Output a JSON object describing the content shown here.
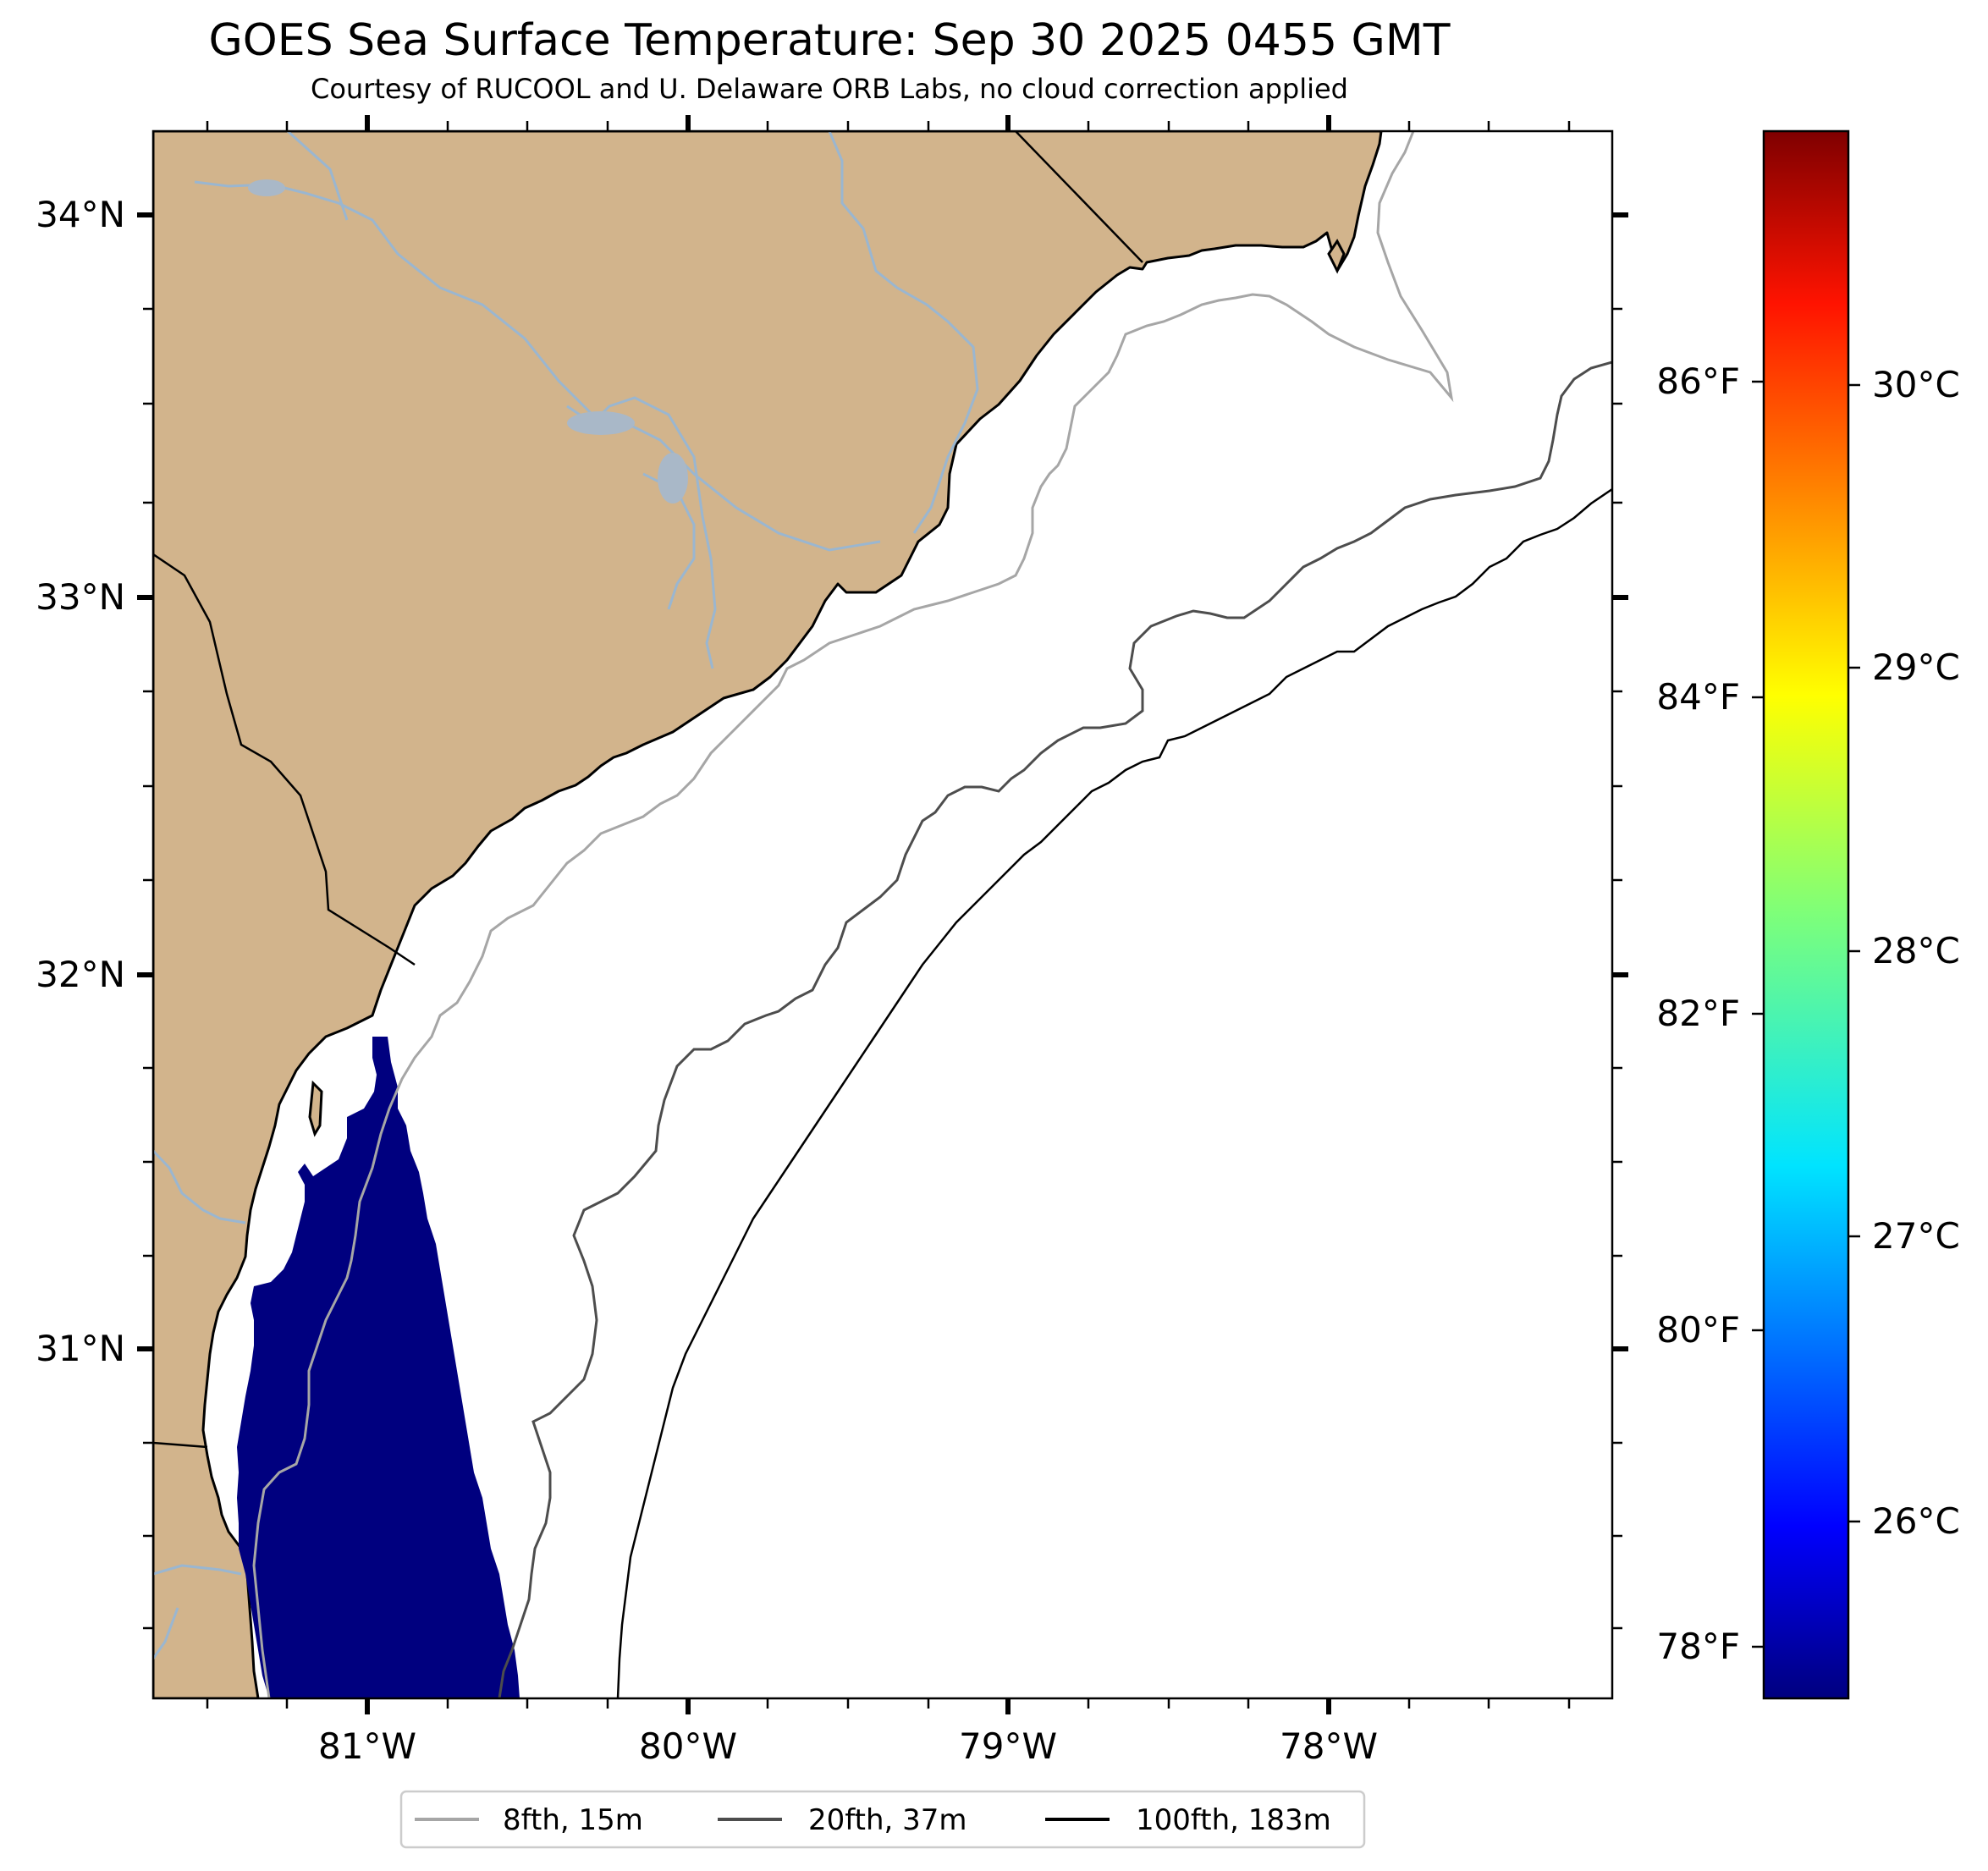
{
  "title": "GOES Sea Surface Temperature: Sep 30 2025 0455 GMT",
  "subtitle": "Courtesy of RUCOOL and U. Delaware ORB Labs, no cloud correction applied",
  "colors": {
    "land": "#d2b48c",
    "river": "#9ab6d0",
    "lake": "#a9b8c8",
    "sst_fill": "#00007f",
    "isobath_8fth": "#a6a6a6",
    "isobath_20fth": "#4d4d4d",
    "isobath_100fth": "#000000",
    "colormap": "jet"
  },
  "map": {
    "lon_ticks": [
      "81°W",
      "80°W",
      "79°W",
      "78°W"
    ],
    "lat_ticks": [
      "34°N",
      "33°N",
      "32°N",
      "31°N"
    ]
  },
  "colorbar": {
    "celsius_ticks": [
      "30°C",
      "29°C",
      "28°C",
      "27°C",
      "26°C"
    ],
    "fahrenheit_ticks": [
      "86°F",
      "84°F",
      "82°F",
      "80°F",
      "78°F"
    ]
  },
  "legend": {
    "items": [
      {
        "label": "8fth, 15m",
        "color": "#a6a6a6"
      },
      {
        "label": "20fth, 37m",
        "color": "#4d4d4d"
      },
      {
        "label": "100fth, 183m",
        "color": "#000000"
      }
    ]
  }
}
